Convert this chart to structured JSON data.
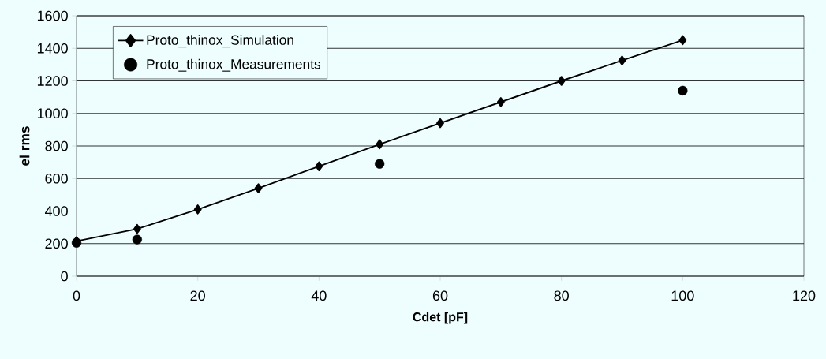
{
  "chart_data": {
    "type": "line",
    "xlabel": "Cdet [pF]",
    "ylabel": "el rms",
    "xlim": [
      0,
      120
    ],
    "xticks": [
      0,
      20,
      40,
      60,
      80,
      100,
      120
    ],
    "ylim": [
      0,
      1600
    ],
    "yticks": [
      0,
      200,
      400,
      600,
      800,
      1000,
      1200,
      1400,
      1600
    ],
    "grid": "y",
    "legend": "top left",
    "series": [
      {
        "name": "Proto_thinox_Simulation",
        "marker": "diamond",
        "line_style": "solid",
        "color": "#000000",
        "x": [
          0,
          10,
          20,
          30,
          40,
          50,
          60,
          70,
          80,
          90,
          100
        ],
        "values": [
          215,
          290,
          410,
          540,
          675,
          810,
          940,
          1070,
          1200,
          1325,
          1450
        ]
      },
      {
        "name": "Proto_thinox_Measurements",
        "type": "scatter",
        "marker": "circle",
        "color": "#000000",
        "x": [
          0,
          10,
          50,
          100
        ],
        "values": [
          205,
          225,
          690,
          1140
        ]
      }
    ]
  }
}
